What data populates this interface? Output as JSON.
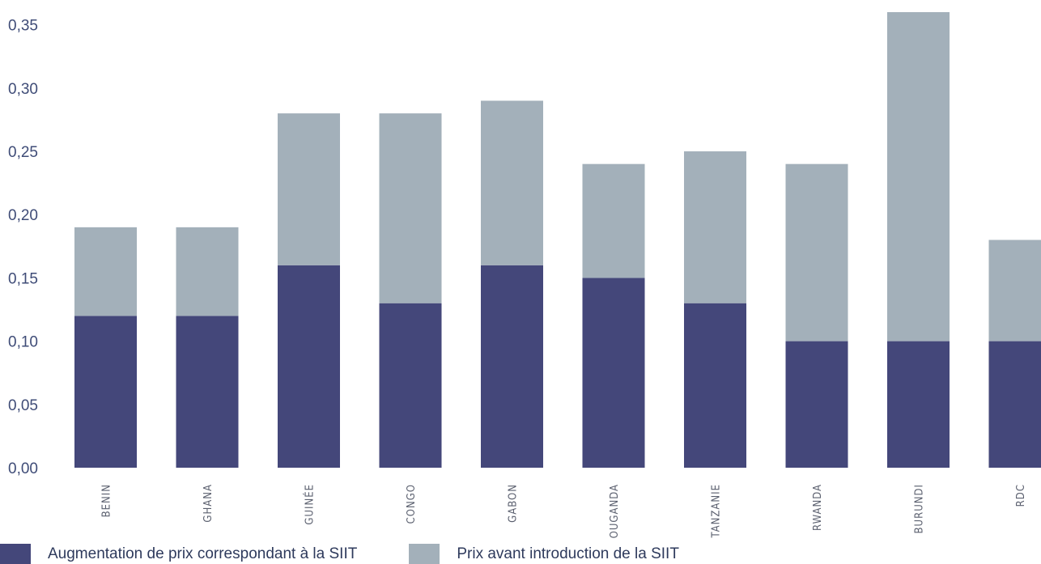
{
  "chart_data": {
    "type": "bar",
    "stacked": true,
    "categories": [
      "BENIN",
      "GHANA",
      "GUINÉE",
      "CONGO",
      "GABON",
      "OUGANDA",
      "TANZANIE",
      "RWANDA",
      "BURUNDI",
      "RDC"
    ],
    "yticks": [
      "0,00",
      "0,05",
      "0,10",
      "0,15",
      "0,20",
      "0,25",
      "0,30",
      "0,35"
    ],
    "ylim": [
      0,
      0.36
    ],
    "grid": false,
    "legend_placement": "bottom-left",
    "series": [
      {
        "name": "Augmentation de prix correspondant à la SIIT",
        "color": "#44477a",
        "values": [
          0.12,
          0.12,
          0.16,
          0.13,
          0.16,
          0.15,
          0.13,
          0.1,
          0.1,
          0.1
        ]
      },
      {
        "name": "Prix avant introduction de la SIIT",
        "color": "#a3b0ba",
        "values": [
          0.07,
          0.07,
          0.12,
          0.15,
          0.13,
          0.09,
          0.12,
          0.14,
          0.26,
          0.08
        ]
      }
    ]
  }
}
